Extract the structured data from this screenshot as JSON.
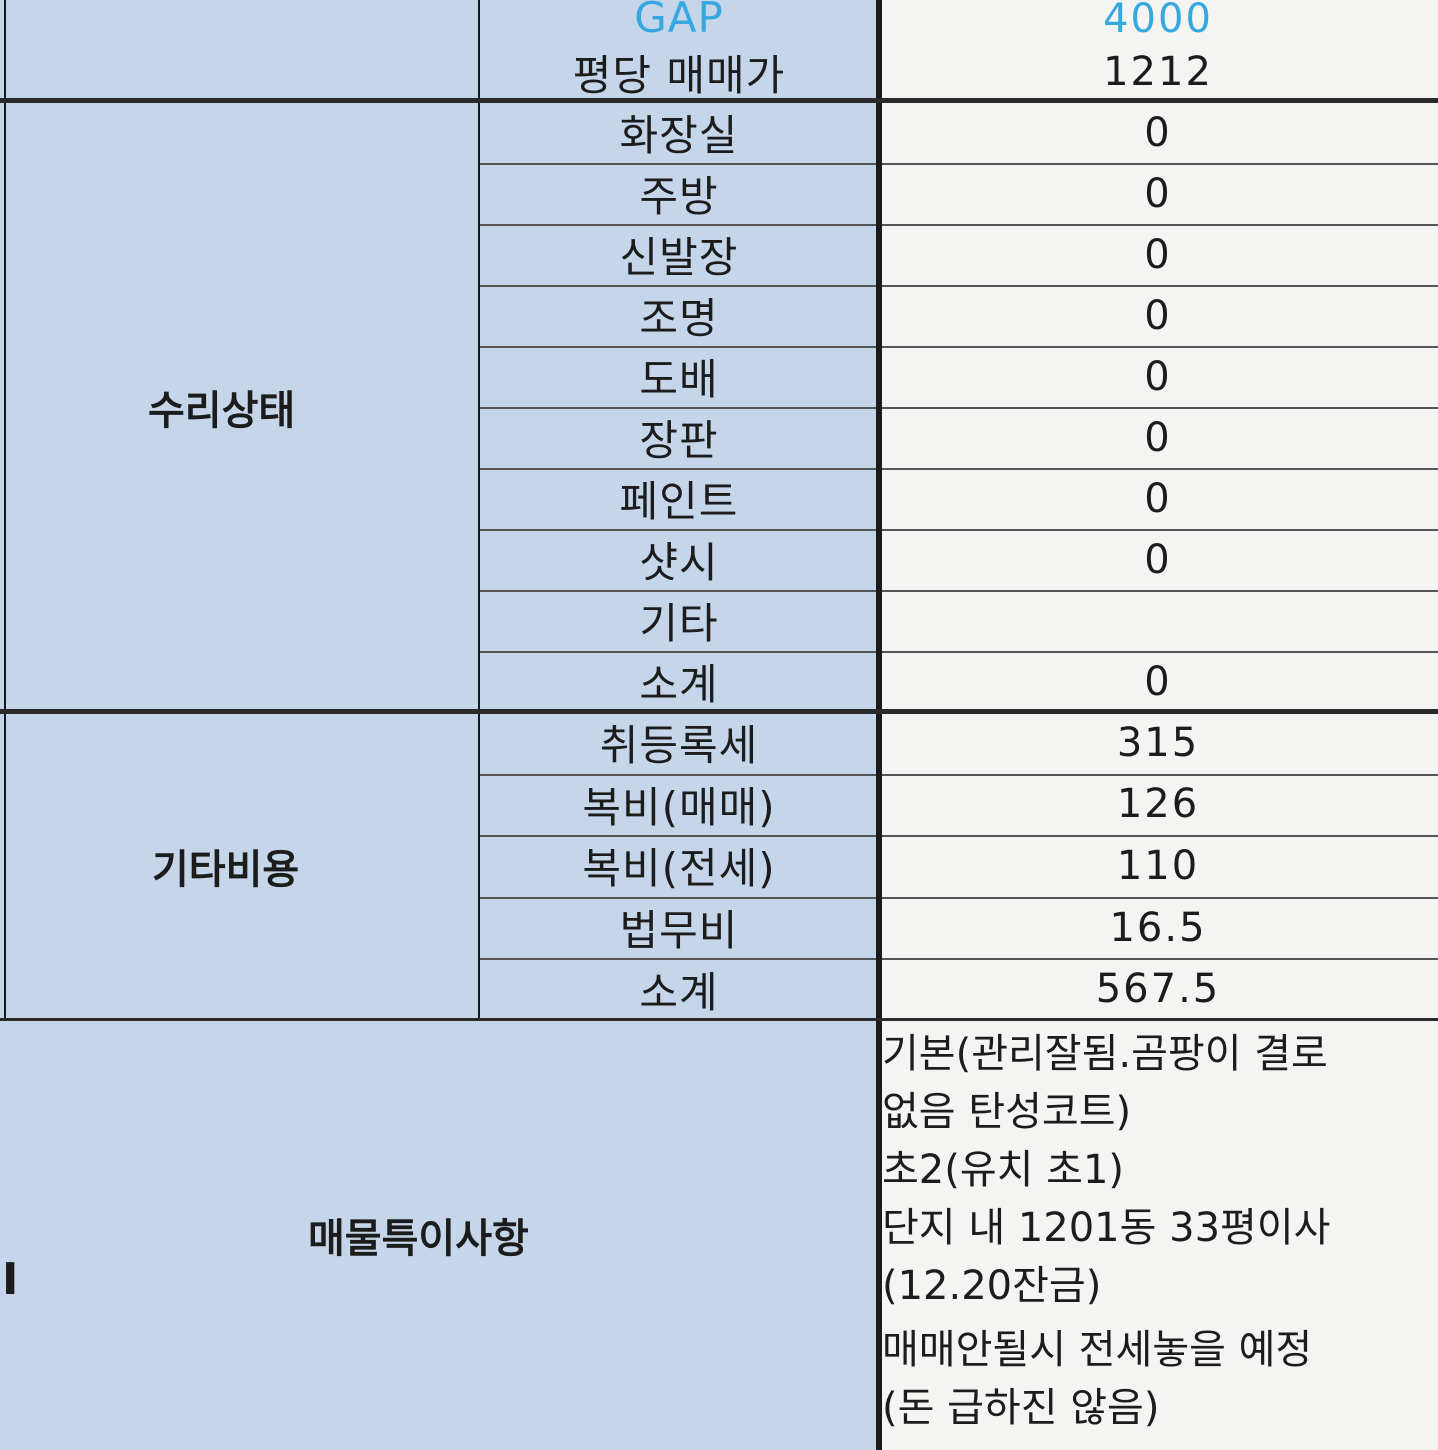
{
  "rows_top": [
    {
      "label": "GAP",
      "value": "4000"
    },
    {
      "label": "평당 매매가",
      "value": "1212"
    }
  ],
  "repair": {
    "group_label": "수리상태",
    "rows": [
      {
        "label": "화장실",
        "value": "0"
      },
      {
        "label": "주방",
        "value": "0"
      },
      {
        "label": "신발장",
        "value": "0"
      },
      {
        "label": "조명",
        "value": "0"
      },
      {
        "label": "도배",
        "value": "0"
      },
      {
        "label": "장판",
        "value": "0"
      },
      {
        "label": "페인트",
        "value": "0"
      },
      {
        "label": "샷시",
        "value": "0"
      },
      {
        "label": "기타",
        "value": ""
      },
      {
        "label": "소계",
        "value": "0"
      }
    ]
  },
  "other_costs": {
    "group_label": "기타비용",
    "rows": [
      {
        "label": "취등록세",
        "value": "315"
      },
      {
        "label": "복비(매매)",
        "value": "126"
      },
      {
        "label": "복비(전세)",
        "value": "110"
      },
      {
        "label": "법무비",
        "value": "16.5"
      },
      {
        "label": "소계",
        "value": "567.5"
      }
    ]
  },
  "notes": {
    "group_label": "매물특이사항",
    "lines": [
      "기본(관리잘됨.곰팡이 결로",
      "없음 탄성코트)",
      "초2(유치 초1)",
      "단지 내 1201동 33평이사",
      "(12.20잔금)",
      "매매안될시 전세놓을 예정",
      "(돈 급하진 않음)"
    ]
  },
  "margin_mark": "I",
  "colors": {
    "label_bg": "#c6d6ea",
    "value_bg": "#f4f5f2",
    "gap_text": "#35a8df"
  }
}
